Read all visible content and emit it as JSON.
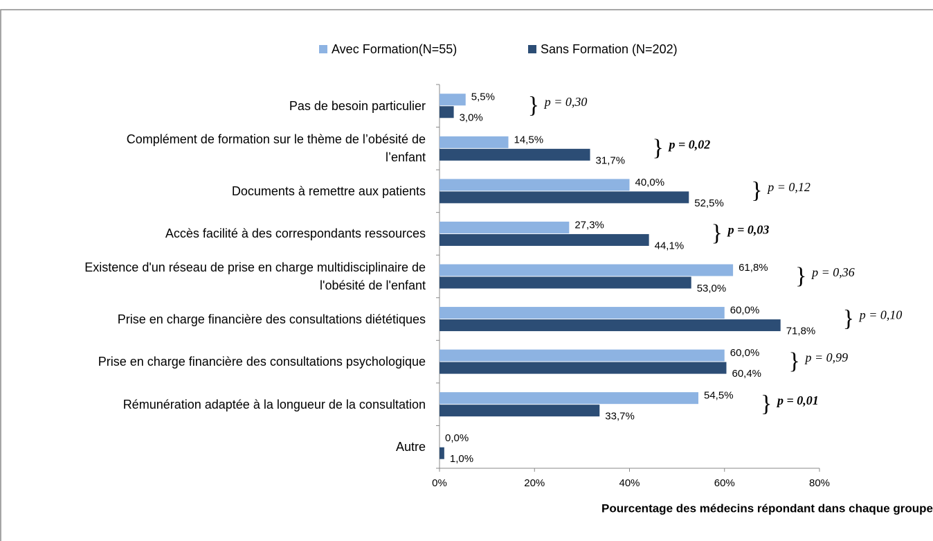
{
  "chart_data": {
    "type": "hbar",
    "categories": [
      "Pas de besoin particulier",
      "Complément de formation sur le thème de l’obésité de\nl’enfant",
      "Documents à remettre aux patients",
      "Accès facilité à des correspondants ressources",
      "Existence d'un réseau de prise en charge multidisciplinaire de\nl'obésité de l'enfant",
      "Prise en charge financière des consultations diététiques",
      "Prise en charge financière des consultations psychologique",
      "Rémunération adaptée à la longueur de la consultation",
      "Autre"
    ],
    "series": [
      {
        "name": "Avec Formation(N=55)",
        "color": "#8db3e2",
        "values": [
          5.5,
          14.5,
          40.0,
          27.3,
          61.8,
          60.0,
          60.0,
          54.5,
          0.0
        ],
        "value_labels": [
          "5,5%",
          "14,5%",
          "40,0%",
          "27,3%",
          "61,8%",
          "60,0%",
          "60,0%",
          "54,5%",
          "0,0%"
        ]
      },
      {
        "name": "Sans Formation (N=202)",
        "color": "#2c4d75",
        "values": [
          3.0,
          31.7,
          52.5,
          44.1,
          53.0,
          71.8,
          60.4,
          33.7,
          1.0
        ],
        "value_labels": [
          "3,0%",
          "31,7%",
          "52,5%",
          "44,1%",
          "53,0%",
          "71,8%",
          "60,4%",
          "33,7%",
          "1,0%"
        ]
      }
    ],
    "annotations": [
      {
        "text": "p = 0,30",
        "bold": false
      },
      {
        "text": "p = 0,02",
        "bold": true
      },
      {
        "text": "p = 0,12",
        "bold": false
      },
      {
        "text": "p = 0,03",
        "bold": true
      },
      {
        "text": "p = 0,36",
        "bold": false
      },
      {
        "text": "p = 0,10",
        "bold": false
      },
      {
        "text": "p = 0,99",
        "bold": false
      },
      {
        "text": "p = 0,01",
        "bold": true
      },
      {
        "text": "",
        "bold": false
      }
    ],
    "xlabel": "Pourcentage des médecins répondant dans chaque groupe",
    "xlim": [
      0,
      80
    ],
    "xticks": [
      {
        "value": 0,
        "label": "0%"
      },
      {
        "value": 20,
        "label": "20%"
      },
      {
        "value": 40,
        "label": "40%"
      },
      {
        "value": 60,
        "label": "60%"
      },
      {
        "value": 80,
        "label": "80%"
      }
    ],
    "legend": "top"
  }
}
